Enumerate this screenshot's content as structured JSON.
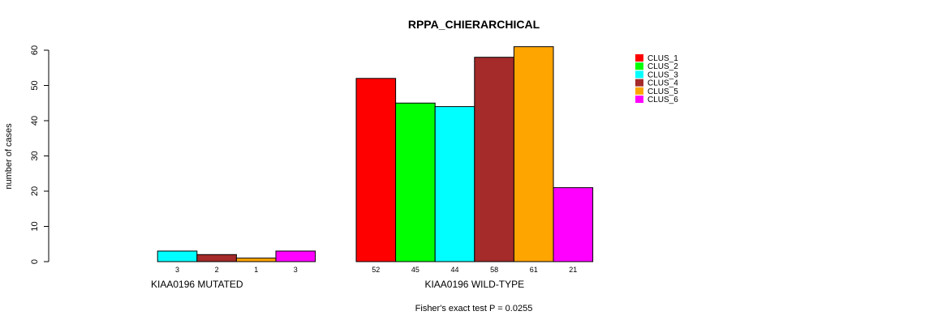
{
  "chart_data": {
    "type": "bar",
    "title": "RPPA_CHIERARCHICAL",
    "ylabel": "number of cases",
    "xlabel": "",
    "footnote": "Fisher's exact test P = 0.0255",
    "ylim": [
      0,
      60
    ],
    "yticks": [
      0,
      10,
      20,
      30,
      40,
      50,
      60
    ],
    "groups": [
      "KIAA0196 MUTATED",
      "KIAA0196 WILD-TYPE"
    ],
    "series": [
      {
        "name": "CLUS_1",
        "color": "#FF0000",
        "values": [
          0,
          52
        ]
      },
      {
        "name": "CLUS_2",
        "color": "#00FF00",
        "values": [
          0,
          45
        ]
      },
      {
        "name": "CLUS_3",
        "color": "#00FFFF",
        "values": [
          3,
          44
        ]
      },
      {
        "name": "CLUS_4",
        "color": "#A52A2A",
        "values": [
          2,
          58
        ]
      },
      {
        "name": "CLUS_5",
        "color": "#FFA500",
        "values": [
          1,
          61
        ]
      },
      {
        "name": "CLUS_6",
        "color": "#FF00FF",
        "values": [
          3,
          21
        ]
      }
    ],
    "bar_labels": [
      [
        "",
        "",
        "3",
        "2",
        "1",
        "3"
      ],
      [
        "52",
        "45",
        "44",
        "58",
        "61",
        "21"
      ]
    ],
    "legend_position": "top-right"
  }
}
